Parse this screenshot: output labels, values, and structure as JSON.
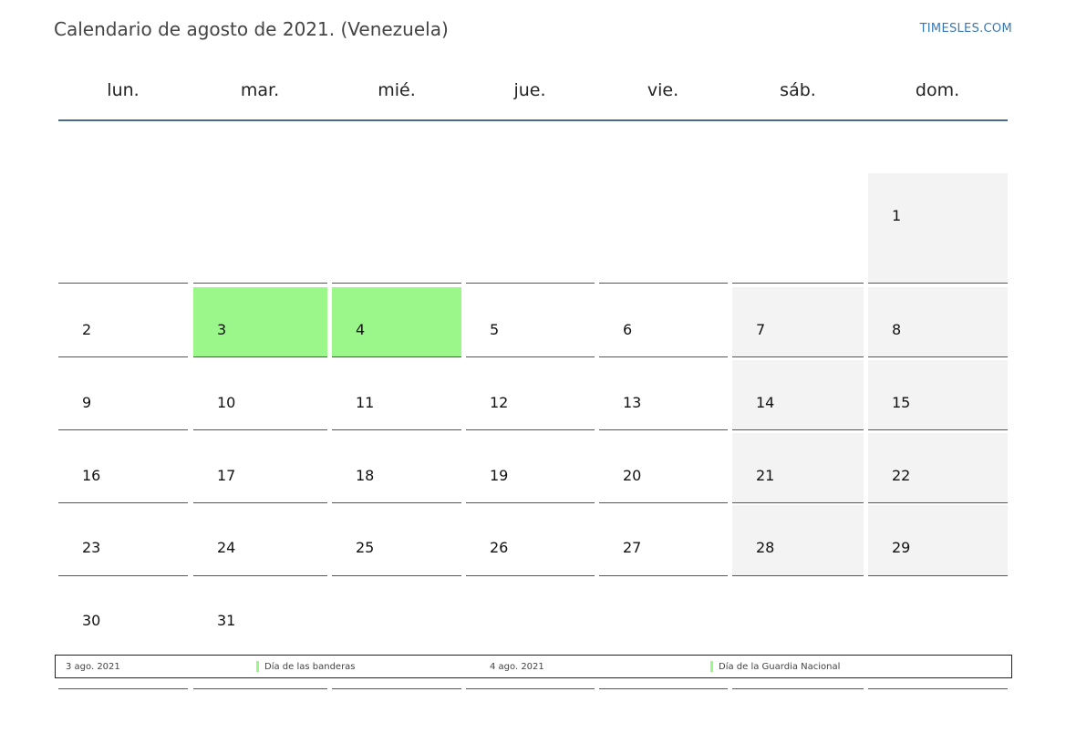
{
  "header": {
    "title": "Calendario de agosto de 2021. (Venezuela)",
    "site": "TIMESLES.COM"
  },
  "weekdays": [
    "lun.",
    "mar.",
    "mié.",
    "jue.",
    "vie.",
    "sáb.",
    "dom."
  ],
  "weeks": [
    [
      "",
      "",
      "",
      "",
      "",
      "",
      "1"
    ],
    [
      "2",
      "3",
      "4",
      "5",
      "6",
      "7",
      "8"
    ],
    [
      "9",
      "10",
      "11",
      "12",
      "13",
      "14",
      "15"
    ],
    [
      "16",
      "17",
      "18",
      "19",
      "20",
      "21",
      "22"
    ],
    [
      "23",
      "24",
      "25",
      "26",
      "27",
      "28",
      "29"
    ],
    [
      "30",
      "31",
      "",
      "",
      "",
      "",
      ""
    ]
  ],
  "holiday_days": [
    "3",
    "4"
  ],
  "colors": {
    "holiday": "#9cf78b",
    "weekend": "#f3f3f3",
    "header_rule": "#4a6a92",
    "link": "#3a78b5"
  },
  "legend": [
    {
      "date": "3 ago. 2021",
      "name": "Día de las banderas"
    },
    {
      "date": "4 ago. 2021",
      "name": "Día de la Guardia Nacional"
    }
  ]
}
